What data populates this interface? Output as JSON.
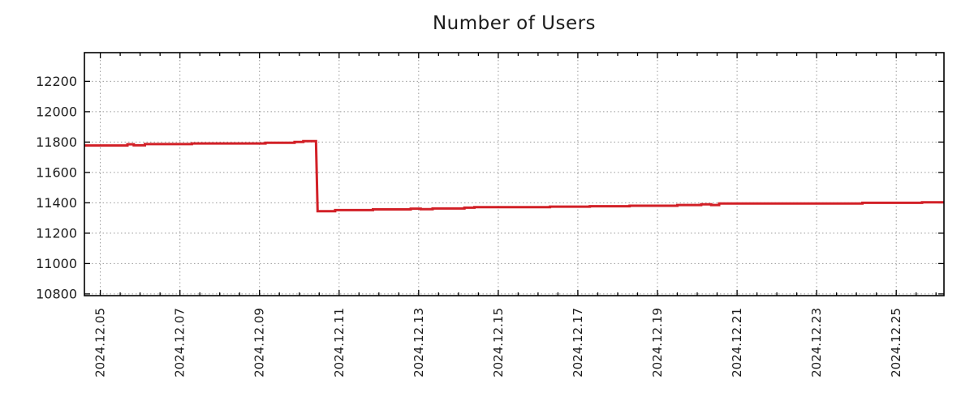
{
  "chart_data": {
    "type": "line",
    "title": "Number of Users",
    "xlabel": "",
    "ylabel": "",
    "x_unit": "days since 2024-12-05 (fractional days)",
    "xlim": [
      -0.4,
      21.2
    ],
    "ylim": [
      10789,
      12389
    ],
    "grid": true,
    "legend": "none",
    "y_ticks": [
      10800,
      11000,
      11200,
      11400,
      11600,
      11800,
      12000,
      12200
    ],
    "x_ticks": [
      {
        "label": "2024.12.05",
        "day": 0
      },
      {
        "label": "2024.12.07",
        "day": 2
      },
      {
        "label": "2024.12.09",
        "day": 4
      },
      {
        "label": "2024.12.11",
        "day": 6
      },
      {
        "label": "2024.12.13",
        "day": 8
      },
      {
        "label": "2024.12.15",
        "day": 10
      },
      {
        "label": "2024.12.17",
        "day": 12
      },
      {
        "label": "2024.12.19",
        "day": 14
      },
      {
        "label": "2024.12.21",
        "day": 16
      },
      {
        "label": "2024.12.23",
        "day": 18
      },
      {
        "label": "2024.12.25",
        "day": 20
      }
    ],
    "minor_x_tick_step_days": 0.5,
    "series": [
      {
        "name": "Number of Users",
        "color": "#d22027",
        "points": [
          [
            -0.4,
            11778
          ],
          [
            0.68,
            11778
          ],
          [
            0.68,
            11786
          ],
          [
            0.84,
            11786
          ],
          [
            0.84,
            11779
          ],
          [
            1.12,
            11779
          ],
          [
            1.12,
            11787
          ],
          [
            2.3,
            11787
          ],
          [
            2.3,
            11791
          ],
          [
            4.15,
            11791
          ],
          [
            4.15,
            11796
          ],
          [
            4.88,
            11796
          ],
          [
            4.88,
            11801
          ],
          [
            5.1,
            11801
          ],
          [
            5.1,
            11806
          ],
          [
            5.42,
            11806
          ],
          [
            5.46,
            11345
          ],
          [
            5.9,
            11345
          ],
          [
            5.9,
            11352
          ],
          [
            6.85,
            11352
          ],
          [
            6.85,
            11357
          ],
          [
            7.8,
            11357
          ],
          [
            7.8,
            11362
          ],
          [
            8.05,
            11362
          ],
          [
            8.05,
            11358
          ],
          [
            8.35,
            11358
          ],
          [
            8.35,
            11363
          ],
          [
            9.15,
            11363
          ],
          [
            9.15,
            11368
          ],
          [
            9.4,
            11368
          ],
          [
            9.4,
            11372
          ],
          [
            11.3,
            11372
          ],
          [
            11.3,
            11375
          ],
          [
            12.3,
            11375
          ],
          [
            12.3,
            11378
          ],
          [
            13.3,
            11378
          ],
          [
            13.3,
            11381
          ],
          [
            14.5,
            11381
          ],
          [
            14.5,
            11386
          ],
          [
            15.1,
            11386
          ],
          [
            15.1,
            11390
          ],
          [
            15.35,
            11390
          ],
          [
            15.35,
            11386
          ],
          [
            15.55,
            11386
          ],
          [
            15.55,
            11396
          ],
          [
            19.15,
            11396
          ],
          [
            19.15,
            11400
          ],
          [
            20.65,
            11400
          ],
          [
            20.65,
            11404
          ],
          [
            21.2,
            11404
          ]
        ]
      }
    ],
    "colors": {
      "background": "#ffffff",
      "axis": "#000000",
      "grid": "#999999",
      "tick_text": "#1c1c1c",
      "title_text": "#1c1c1c",
      "line": "#d22027"
    }
  }
}
